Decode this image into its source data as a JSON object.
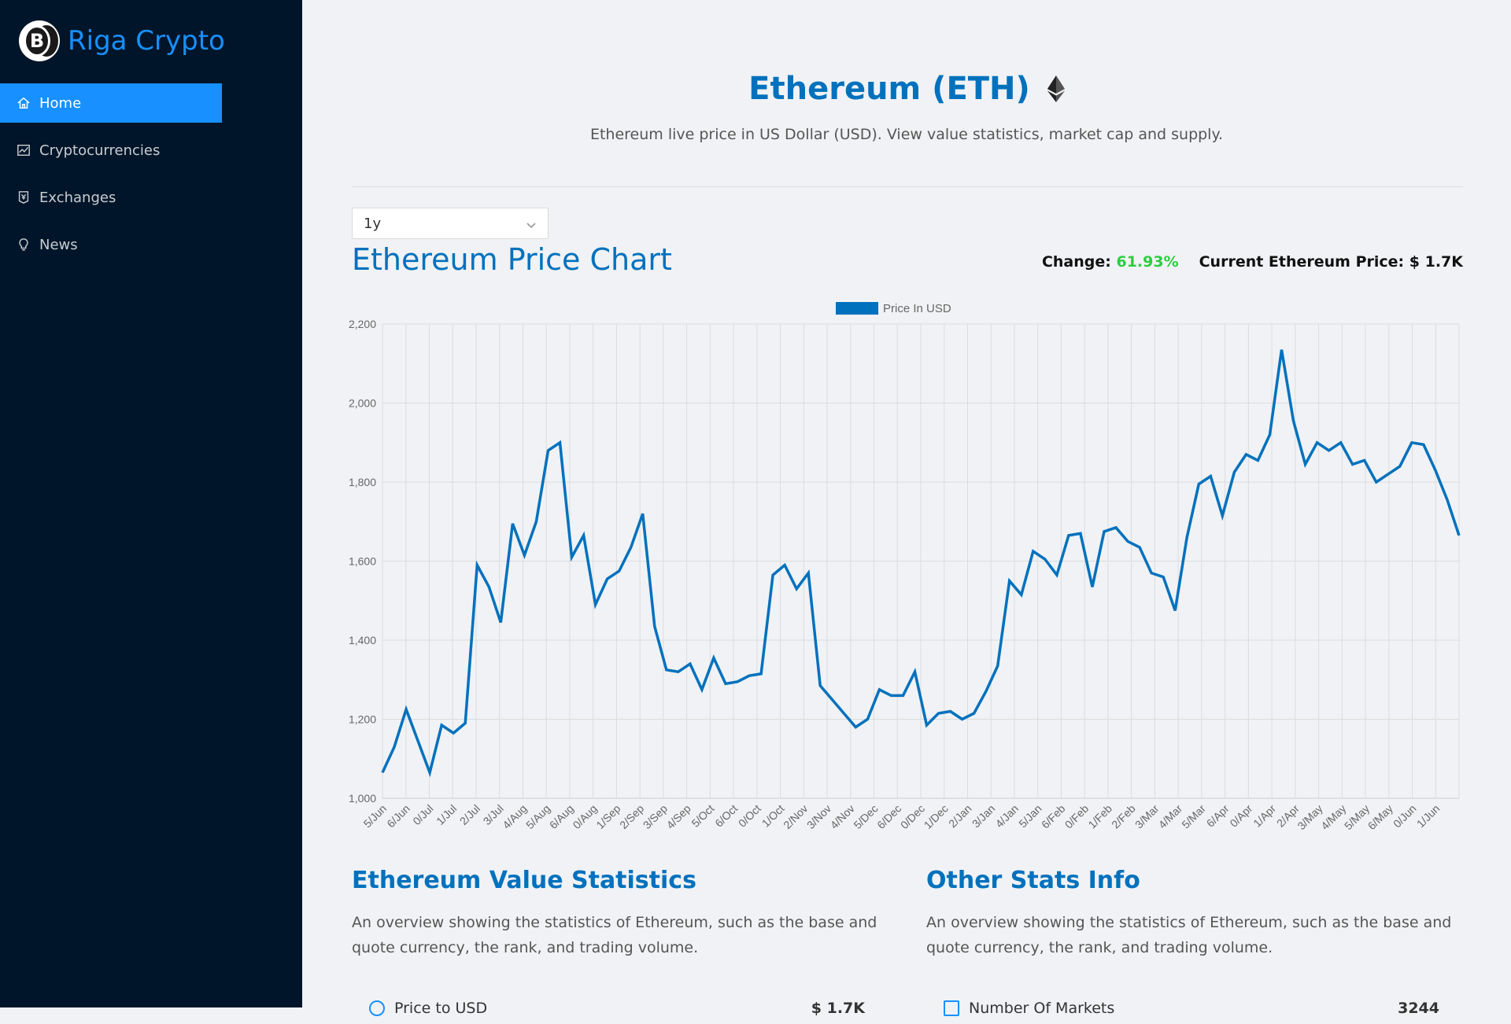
{
  "sidebar": {
    "brand_title": "Riga Crypto",
    "brand_icon": "bitcoin-coins-icon",
    "items": [
      {
        "label": "Home",
        "icon": "home-icon",
        "active": true
      },
      {
        "label": "Cryptocurrencies",
        "icon": "fund-icon",
        "active": false
      },
      {
        "label": "Exchanges",
        "icon": "money-collect-icon",
        "active": false
      },
      {
        "label": "News",
        "icon": "bulb-icon",
        "active": false
      }
    ]
  },
  "header": {
    "title": "Ethereum (ETH)",
    "subtitle": "Ethereum live price in US Dollar (USD). View value statistics, market cap and supply."
  },
  "period_select": {
    "value": "1y"
  },
  "chart_header": {
    "title": "Ethereum Price Chart",
    "change_label": "Change:",
    "change_value": "61.93%",
    "price_label": "Current Ethereum Price: $ 1.7K"
  },
  "colors": {
    "accent": "#0071bd",
    "sidebar_bg": "#001529",
    "active_menu": "#1890ff",
    "positive": "#2ecc40"
  },
  "chart_data": {
    "type": "line",
    "legend": "Price In USD",
    "legend_position": "top",
    "grid": true,
    "ylim": [
      1000,
      2200
    ],
    "yticks": [
      1000,
      1200,
      1400,
      1600,
      1800,
      2000,
      2200
    ],
    "x_tick_labels": [
      "5/Jun",
      "6/Jun",
      "0/Jul",
      "1/Jul",
      "2/Jul",
      "3/Jul",
      "4/Aug",
      "5/Aug",
      "6/Aug",
      "0/Aug",
      "1/Sep",
      "2/Sep",
      "3/Sep",
      "4/Sep",
      "5/Oct",
      "6/Oct",
      "0/Oct",
      "1/Oct",
      "2/Nov",
      "3/Nov",
      "4/Nov",
      "5/Dec",
      "6/Dec",
      "0/Dec",
      "1/Dec",
      "2/Jan",
      "3/Jan",
      "4/Jan",
      "5/Jan",
      "6/Feb",
      "0/Feb",
      "1/Feb",
      "2/Feb",
      "3/Mar",
      "4/Mar",
      "5/Mar",
      "6/Apr",
      "0/Apr",
      "1/Apr",
      "2/Apr",
      "3/May",
      "4/May",
      "5/May",
      "6/May",
      "0/Jun",
      "1/Jun"
    ],
    "series": [
      {
        "name": "Price In USD",
        "values": [
          1065,
          1130,
          1225,
          1145,
          1065,
          1185,
          1165,
          1190,
          1590,
          1535,
          1445,
          1695,
          1615,
          1700,
          1880,
          1900,
          1610,
          1665,
          1490,
          1555,
          1575,
          1635,
          1720,
          1435,
          1325,
          1320,
          1340,
          1275,
          1355,
          1290,
          1295,
          1310,
          1315,
          1565,
          1590,
          1530,
          1570,
          1285,
          1250,
          1215,
          1180,
          1200,
          1275,
          1260,
          1260,
          1320,
          1185,
          1215,
          1220,
          1200,
          1215,
          1270,
          1335,
          1550,
          1515,
          1625,
          1605,
          1565,
          1665,
          1670,
          1535,
          1675,
          1685,
          1650,
          1635,
          1570,
          1560,
          1475,
          1660,
          1795,
          1815,
          1715,
          1825,
          1870,
          1855,
          1920,
          2135,
          1955,
          1845,
          1900,
          1880,
          1900,
          1845,
          1855,
          1800,
          1820,
          1840,
          1900,
          1895,
          1830,
          1755,
          1665
        ]
      }
    ]
  },
  "value_stats": {
    "title": "Ethereum Value Statistics",
    "description": "An overview showing the statistics of Ethereum, such as the base and quote currency, the rank, and trading volume.",
    "first_row": {
      "label": "Price to USD",
      "value": "$ 1.7K"
    }
  },
  "other_stats": {
    "title": "Other Stats Info",
    "description": "An overview showing the statistics of Ethereum, such as the base and quote currency, the rank, and trading volume.",
    "first_row": {
      "label": "Number Of Markets",
      "value": "3244"
    }
  }
}
